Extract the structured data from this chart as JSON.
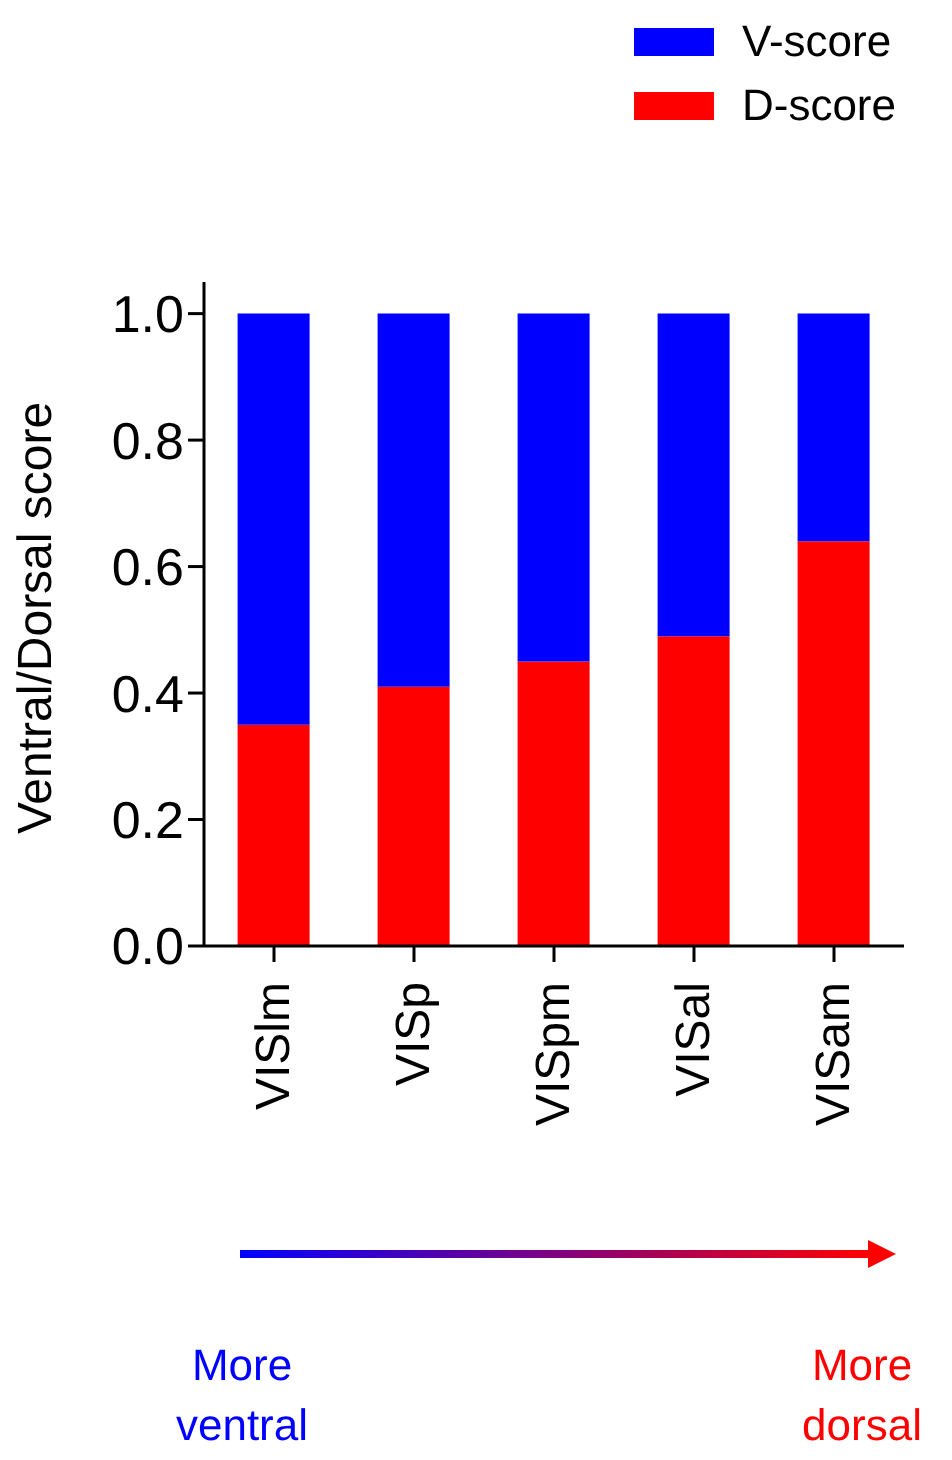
{
  "chart_data": {
    "type": "bar",
    "stacked": true,
    "ylabel": "Ventral/Dorsal score",
    "categories": [
      "VISlm",
      "VISp",
      "VISpm",
      "VISal",
      "VISam"
    ],
    "series": [
      {
        "name": "D-score",
        "color": "#ff0000",
        "values": [
          0.35,
          0.41,
          0.45,
          0.49,
          0.64
        ]
      },
      {
        "name": "V-score",
        "color": "#0000ff",
        "values": [
          0.65,
          0.59,
          0.55,
          0.51,
          0.36
        ]
      }
    ],
    "ylim": [
      0,
      1.05
    ],
    "yticks": [
      {
        "value": 0,
        "label": "0.0"
      },
      {
        "value": 0.2,
        "label": "0.2"
      },
      {
        "value": 0.4,
        "label": "0.4"
      },
      {
        "value": 0.6,
        "label": "0.6"
      },
      {
        "value": 0.8,
        "label": "0.8"
      },
      {
        "value": 1,
        "label": "1.0"
      }
    ],
    "legend": "top right",
    "grid": false,
    "annotations": [
      "More ventral",
      "More dorsal"
    ]
  }
}
